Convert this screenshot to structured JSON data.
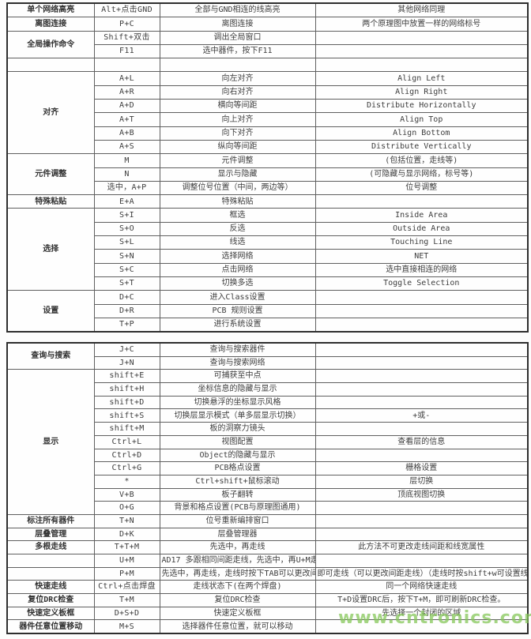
{
  "watermark": "www.cntronics.com",
  "colors": {
    "watermark_green": "#86c75a",
    "text": "#3d3d3d",
    "border": "#5f5f5f"
  },
  "tables": [
    {
      "rows": [
        [
          {
            "t": "单个网络高亮"
          },
          {
            "t": "Alt+点击GND"
          },
          {
            "t": "全部与GND相连的线高亮"
          },
          {
            "t": "其他网络同理"
          }
        ],
        [
          {
            "t": "离图连接"
          },
          {
            "t": "P+C"
          },
          {
            "t": "离图连接"
          },
          {
            "t": "两个原理图中放置一样的网络标号"
          }
        ],
        [
          {
            "t": "全局操作命令",
            "rs": 2
          },
          {
            "t": "Shift+双击"
          },
          {
            "t": "调出全局窗口"
          },
          {
            "t": ""
          }
        ],
        [
          {
            "t": "F11"
          },
          {
            "t": "选中器件，按下F11"
          },
          {
            "t": ""
          }
        ],
        [
          {
            "t": ""
          },
          {
            "t": ""
          },
          {
            "t": ""
          },
          {
            "t": ""
          }
        ],
        [
          {
            "t": "对齐",
            "rs": 6
          },
          {
            "t": "A+L"
          },
          {
            "t": "向左对齐"
          },
          {
            "t": "Align Left"
          }
        ],
        [
          {
            "t": "A+R"
          },
          {
            "t": "向右对齐"
          },
          {
            "t": "Align Right"
          }
        ],
        [
          {
            "t": "A+D"
          },
          {
            "t": "横向等间距"
          },
          {
            "t": "Distribute Horizontally"
          }
        ],
        [
          {
            "t": "A+T"
          },
          {
            "t": "向上对齐"
          },
          {
            "t": "Align Top"
          }
        ],
        [
          {
            "t": "A+B"
          },
          {
            "t": "向下对齐"
          },
          {
            "t": "Align Bottom"
          }
        ],
        [
          {
            "t": "A+S"
          },
          {
            "t": "纵向等间距"
          },
          {
            "t": "Distribute Vertically"
          }
        ],
        [
          {
            "t": "元件调整",
            "rs": 3
          },
          {
            "t": "M"
          },
          {
            "t": "元件调整"
          },
          {
            "t": "(包括位置，走线等)"
          }
        ],
        [
          {
            "t": "N"
          },
          {
            "t": "显示与隐藏"
          },
          {
            "t": "(可隐藏与显示网络，标号等)"
          }
        ],
        [
          {
            "t": "选中，A+P"
          },
          {
            "t": "调整位号位置（中间，两边等）"
          },
          {
            "t": "位号调整"
          }
        ],
        [
          {
            "t": "特殊粘贴"
          },
          {
            "t": "E+A"
          },
          {
            "t": "特殊粘贴"
          },
          {
            "t": ""
          }
        ],
        [
          {
            "t": "选择",
            "rs": 6
          },
          {
            "t": "S+I"
          },
          {
            "t": "框选"
          },
          {
            "t": "Inside Area"
          }
        ],
        [
          {
            "t": "S+O"
          },
          {
            "t": "反选"
          },
          {
            "t": "Outside Area"
          }
        ],
        [
          {
            "t": "S+L"
          },
          {
            "t": "线选"
          },
          {
            "t": "Touching Line"
          }
        ],
        [
          {
            "t": "S+N"
          },
          {
            "t": "选择网络"
          },
          {
            "t": "NET"
          }
        ],
        [
          {
            "t": "S+C"
          },
          {
            "t": "点击网络"
          },
          {
            "t": "选中直接相连的网络"
          }
        ],
        [
          {
            "t": "S+T"
          },
          {
            "t": "切换多选"
          },
          {
            "t": "Toggle Selection"
          }
        ],
        [
          {
            "t": "设置",
            "rs": 3
          },
          {
            "t": "D+C"
          },
          {
            "t": "进入Class设置"
          },
          {
            "t": ""
          }
        ],
        [
          {
            "t": "D+R"
          },
          {
            "t": "PCB 规则设置"
          },
          {
            "t": ""
          }
        ],
        [
          {
            "t": "T+P"
          },
          {
            "t": "进行系统设置"
          },
          {
            "t": ""
          }
        ]
      ]
    },
    {
      "rows": [
        [
          {
            "t": "查询与搜索",
            "rs": 2
          },
          {
            "t": "J+C"
          },
          {
            "t": "查询与搜索器件"
          },
          {
            "t": ""
          }
        ],
        [
          {
            "t": "J+N"
          },
          {
            "t": "查询与搜索网络"
          },
          {
            "t": ""
          }
        ],
        [
          {
            "t": "显示",
            "rs": 11
          },
          {
            "t": "shift+E"
          },
          {
            "t": "可捕获至中点"
          },
          {
            "t": ""
          }
        ],
        [
          {
            "t": "shift+H"
          },
          {
            "t": "坐标信息的隐藏与显示"
          },
          {
            "t": ""
          }
        ],
        [
          {
            "t": "shift+D"
          },
          {
            "t": "切换悬浮的坐标显示风格"
          },
          {
            "t": ""
          }
        ],
        [
          {
            "t": "shift+S"
          },
          {
            "t": "切换层显示模式（单多层显示切换）"
          },
          {
            "t": "+或-"
          }
        ],
        [
          {
            "t": "shift+M"
          },
          {
            "t": "板的洞察力镜头"
          },
          {
            "t": ""
          }
        ],
        [
          {
            "t": "Ctrl+L"
          },
          {
            "t": "视图配置"
          },
          {
            "t": "查看层的信息"
          }
        ],
        [
          {
            "t": "Ctrl+D"
          },
          {
            "t": "Object的隐藏与显示"
          },
          {
            "t": ""
          }
        ],
        [
          {
            "t": "Ctrl+G"
          },
          {
            "t": "PCB格点设置"
          },
          {
            "t": "栅格设置"
          }
        ],
        [
          {
            "t": "*"
          },
          {
            "t": "Ctrl+shift+鼠标滚动"
          },
          {
            "t": "层切换"
          }
        ],
        [
          {
            "t": "V+B"
          },
          {
            "t": "板子翻转"
          },
          {
            "t": "顶底视图切换"
          }
        ],
        [
          {
            "t": "O+G"
          },
          {
            "t": "背景和格点设置(PCB与原理图通用)"
          },
          {
            "t": ""
          }
        ],
        [
          {
            "t": "标注所有器件"
          },
          {
            "t": "T+N"
          },
          {
            "t": "位号重新编排窗口"
          },
          {
            "t": ""
          }
        ],
        [
          {
            "t": "层叠管理"
          },
          {
            "t": "D+K"
          },
          {
            "t": "层叠管理器"
          },
          {
            "t": ""
          }
        ],
        [
          {
            "t": "多根走线"
          },
          {
            "t": "T+T+M"
          },
          {
            "t": "先选中，再走线"
          },
          {
            "t": "此方法不可更改走线间距和线宽属性"
          }
        ],
        [
          {
            "t": ""
          },
          {
            "t": "U+M"
          },
          {
            "t": "AD17 多跟相同间距走线，先选中，再U+M走线"
          },
          {
            "t": ""
          }
        ],
        [
          {
            "t": ""
          },
          {
            "t": "P+M"
          },
          {
            "t": "先选中，再走线，走线时按下TAB可以更改间距"
          },
          {
            "t": "即可走线（可以更改间距走线）（走线时按shift+w可设置线宽）"
          }
        ],
        [
          {
            "t": "快速走线"
          },
          {
            "t": "Ctrl+点击焊盘"
          },
          {
            "t": "走线状态下(在两个焊盘)"
          },
          {
            "t": "同一个网络快速走线"
          }
        ],
        [
          {
            "t": "复位DRC检查"
          },
          {
            "t": "T+M"
          },
          {
            "t": "复位DRC检查"
          },
          {
            "t": "T+D设置DRC后，按下T+M，即可刷新DRC检查。"
          }
        ],
        [
          {
            "t": "快速定义板框"
          },
          {
            "t": "D+S+D"
          },
          {
            "t": "快速定义板框"
          },
          {
            "t": "先选择一个封闭的区域"
          }
        ],
        [
          {
            "t": "器件任意位置移动"
          },
          {
            "t": "M+S"
          },
          {
            "t": "选择器件任意位置，就可以移动"
          },
          {
            "t": ""
          }
        ]
      ]
    }
  ]
}
